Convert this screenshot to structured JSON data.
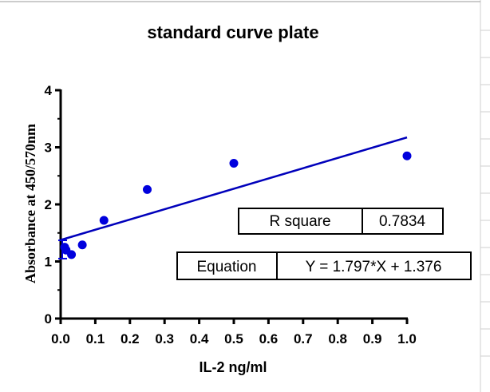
{
  "chart_data": {
    "type": "scatter",
    "title": "standard curve plate",
    "xlabel": "IL-2  ng/ml",
    "ylabel": "Absorbance at 450/570nm",
    "xlim": [
      0,
      1.0
    ],
    "ylim": [
      0,
      4
    ],
    "x_ticks": [
      "0.0",
      "0.1",
      "0.2",
      "0.3",
      "0.4",
      "0.5",
      "0.6",
      "0.7",
      "0.8",
      "0.9",
      "1.0"
    ],
    "y_ticks": [
      "0",
      "1",
      "2",
      "3",
      "4"
    ],
    "grid": false,
    "points_color": "#0000dd",
    "line_color": "#0000bb",
    "points": [
      {
        "x": 0.0,
        "y": 1.25
      },
      {
        "x": 0.0156,
        "y": 1.2
      },
      {
        "x": 0.03125,
        "y": 1.12
      },
      {
        "x": 0.0625,
        "y": 1.29
      },
      {
        "x": 0.125,
        "y": 1.72
      },
      {
        "x": 0.25,
        "y": 2.26
      },
      {
        "x": 0.5,
        "y": 2.72
      },
      {
        "x": 1.0,
        "y": 2.85
      }
    ],
    "fit": {
      "slope": 1.797,
      "intercept": 1.376,
      "x_range": [
        0,
        1.0
      ]
    },
    "annotations": {
      "r_square_label": "R square",
      "r_square_value": "0.7834",
      "equation_label": "Equation",
      "equation_value": "Y = 1.797*X + 1.376"
    }
  }
}
